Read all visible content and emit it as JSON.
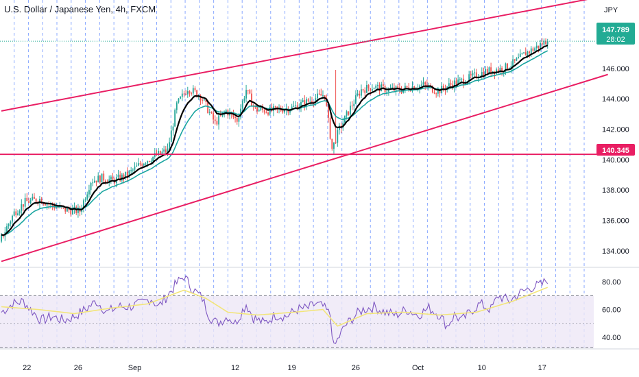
{
  "header": {
    "title": "U.S. Dollar / Japanese Yen, 4h, FXCM",
    "currency": "JPY"
  },
  "last_price": {
    "value": "147.789",
    "countdown": "28:02",
    "color": "#22ab94"
  },
  "level_label": {
    "value": "140.345",
    "color": "#e91e63"
  },
  "colors": {
    "up": "#26a69a",
    "down": "#ef5350",
    "trendline": "#e91e63",
    "ema_fast": "#000000",
    "ema_slow": "#1aa5a0",
    "rsi_line": "#7e57c2",
    "rsi_ma": "#f2e57a",
    "rsi_band": "#ede7f6",
    "grid": "#2962ff"
  },
  "chart_data": [
    {
      "type": "candlestick",
      "title": "U.S. Dollar / Japanese Yen, 4h, FXCM",
      "ylim": [
        133.0,
        150.5
      ],
      "y_ticks": [
        "134.000",
        "136.000",
        "138.000",
        "140.000",
        "142.000",
        "144.000",
        "146.000"
      ],
      "x_tick_labels": [
        "22",
        "26",
        "Sep",
        "12",
        "19",
        "26",
        "Oct",
        "10",
        "17"
      ],
      "x_tick_bars": [
        14,
        42,
        73,
        128,
        159,
        194,
        228,
        263,
        296
      ],
      "bar_count": 300,
      "price_path": [
        [
          0,
          134.6
        ],
        [
          8,
          136.5
        ],
        [
          14,
          137.2
        ],
        [
          22,
          137.4
        ],
        [
          28,
          137.0
        ],
        [
          36,
          136.7
        ],
        [
          44,
          136.6
        ],
        [
          50,
          138.6
        ],
        [
          56,
          138.8
        ],
        [
          62,
          138.6
        ],
        [
          70,
          139.0
        ],
        [
          78,
          139.8
        ],
        [
          86,
          140.3
        ],
        [
          92,
          140.6
        ],
        [
          97,
          143.6
        ],
        [
          103,
          144.7
        ],
        [
          110,
          144.2
        ],
        [
          118,
          142.4
        ],
        [
          124,
          143.2
        ],
        [
          130,
          142.6
        ],
        [
          135,
          144.6
        ],
        [
          140,
          143.3
        ],
        [
          148,
          143.2
        ],
        [
          160,
          143.4
        ],
        [
          168,
          143.8
        ],
        [
          178,
          144.3
        ],
        [
          182,
          140.7
        ],
        [
          186,
          142.0
        ],
        [
          192,
          143.4
        ],
        [
          198,
          144.6
        ],
        [
          205,
          144.8
        ],
        [
          212,
          144.6
        ],
        [
          220,
          144.6
        ],
        [
          226,
          144.8
        ],
        [
          232,
          144.9
        ],
        [
          240,
          144.5
        ],
        [
          248,
          145.0
        ],
        [
          256,
          145.3
        ],
        [
          266,
          145.8
        ],
        [
          276,
          146.0
        ],
        [
          282,
          146.4
        ],
        [
          288,
          147.0
        ],
        [
          294,
          147.4
        ],
        [
          299,
          147.79
        ]
      ],
      "levels": [
        {
          "type": "horizontal",
          "value": 140.345
        }
      ],
      "trendlines": [
        {
          "from": [
            0,
            143.2
          ],
          "to": [
            332,
            150.8
          ]
        },
        {
          "from": [
            0,
            133.3
          ],
          "to": [
            332,
            145.6
          ]
        }
      ]
    },
    {
      "type": "line",
      "name": "RSI",
      "ylim": [
        32,
        88
      ],
      "y_ticks": [
        "40.00",
        "60.00",
        "80.00"
      ],
      "bands": [
        30,
        70
      ],
      "rsi_path": [
        [
          0,
          58
        ],
        [
          6,
          64
        ],
        [
          12,
          66
        ],
        [
          16,
          60
        ],
        [
          22,
          52
        ],
        [
          28,
          55
        ],
        [
          34,
          52
        ],
        [
          40,
          55
        ],
        [
          46,
          60
        ],
        [
          52,
          66
        ],
        [
          58,
          58
        ],
        [
          64,
          62
        ],
        [
          70,
          62
        ],
        [
          76,
          64
        ],
        [
          82,
          68
        ],
        [
          86,
          62
        ],
        [
          92,
          72
        ],
        [
          96,
          79
        ],
        [
          100,
          84
        ],
        [
          104,
          76
        ],
        [
          110,
          68
        ],
        [
          114,
          55
        ],
        [
          118,
          50
        ],
        [
          124,
          55
        ],
        [
          128,
          50
        ],
        [
          134,
          64
        ],
        [
          138,
          54
        ],
        [
          144,
          50
        ],
        [
          150,
          56
        ],
        [
          156,
          55
        ],
        [
          162,
          60
        ],
        [
          168,
          61
        ],
        [
          172,
          64
        ],
        [
          176,
          62
        ],
        [
          180,
          56
        ],
        [
          182,
          32
        ],
        [
          184,
          38
        ],
        [
          188,
          48
        ],
        [
          194,
          56
        ],
        [
          198,
          60
        ],
        [
          204,
          62
        ],
        [
          210,
          58
        ],
        [
          216,
          56
        ],
        [
          222,
          60
        ],
        [
          228,
          56
        ],
        [
          234,
          61
        ],
        [
          240,
          56
        ],
        [
          244,
          48
        ],
        [
          248,
          56
        ],
        [
          252,
          52
        ],
        [
          258,
          60
        ],
        [
          262,
          64
        ],
        [
          268,
          60
        ],
        [
          272,
          70
        ],
        [
          278,
          66
        ],
        [
          284,
          72
        ],
        [
          290,
          76
        ],
        [
          296,
          78
        ],
        [
          299,
          82
        ]
      ],
      "rsi_ma_path": [
        [
          0,
          62
        ],
        [
          20,
          60
        ],
        [
          40,
          57
        ],
        [
          60,
          61
        ],
        [
          80,
          64
        ],
        [
          100,
          74
        ],
        [
          112,
          68
        ],
        [
          124,
          58
        ],
        [
          140,
          56
        ],
        [
          160,
          58
        ],
        [
          176,
          60
        ],
        [
          184,
          48
        ],
        [
          200,
          57
        ],
        [
          220,
          58
        ],
        [
          240,
          56
        ],
        [
          260,
          58
        ],
        [
          280,
          66
        ],
        [
          299,
          76
        ]
      ]
    }
  ]
}
